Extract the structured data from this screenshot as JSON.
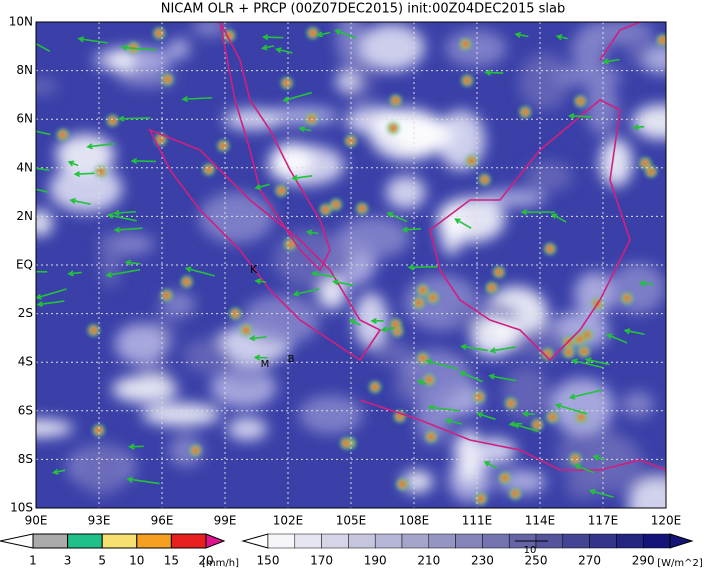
{
  "title": "NICAM OLR + PRCP (00Z07DEC2015) init:00Z04DEC2015 slab",
  "map": {
    "lat_labels": [
      "10N",
      "8N",
      "6N",
      "4N",
      "2N",
      "EQ",
      "2S",
      "4S",
      "6S",
      "8S",
      "10S"
    ],
    "lon_labels": [
      "90E",
      "93E",
      "96E",
      "99E",
      "102E",
      "105E",
      "108E",
      "111E",
      "114E",
      "117E",
      "120E"
    ],
    "places": [
      "K",
      "M",
      "B"
    ]
  },
  "legend_precip": {
    "ticks": [
      1,
      3,
      5,
      10,
      15,
      20
    ],
    "unit": "[mm/h]"
  },
  "legend_olr": {
    "ticks": [
      150,
      170,
      190,
      210,
      230,
      250,
      270,
      290
    ],
    "unit": "[W/m^2]",
    "wind_ref": "10"
  }
}
